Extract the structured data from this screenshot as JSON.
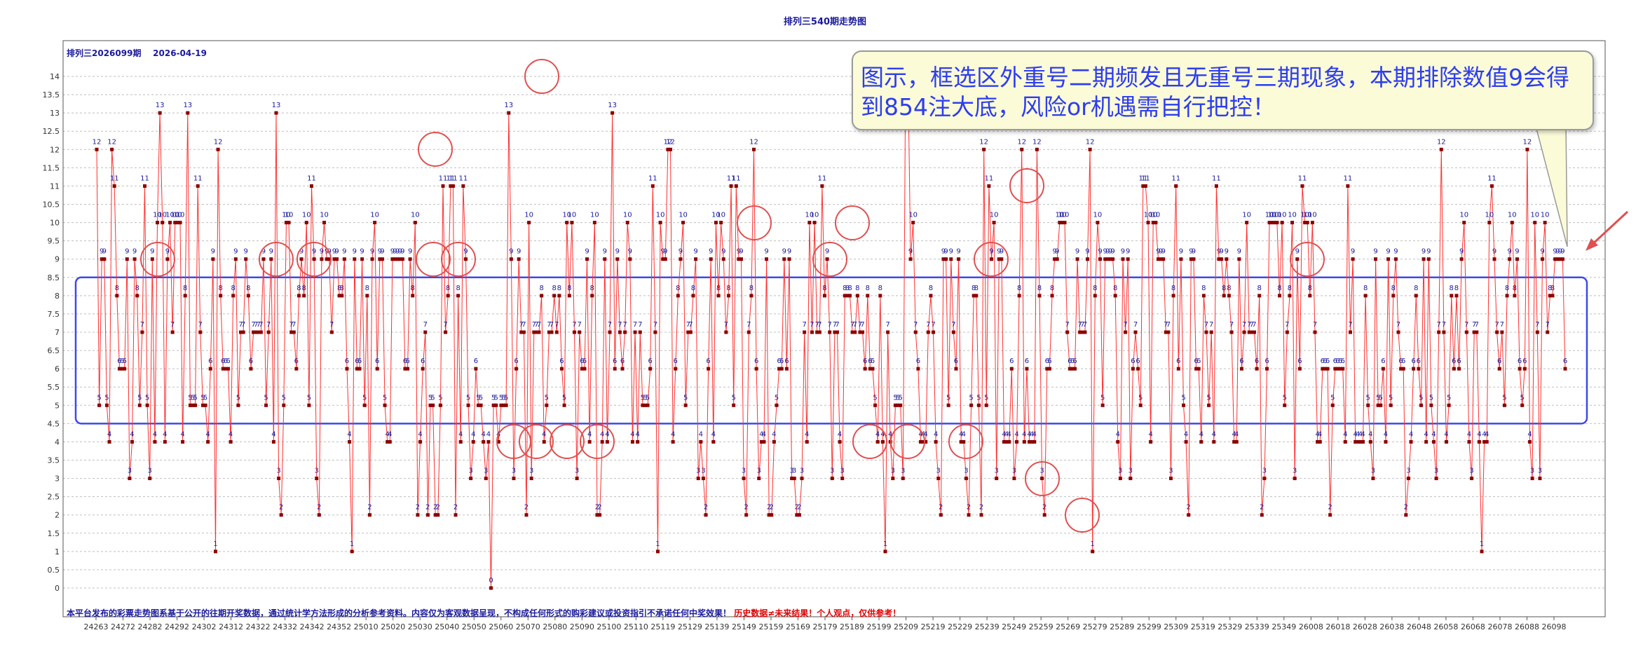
{
  "page": {
    "title": "排列三540期走势图",
    "subtitle": "排列三2026099期",
    "date": "2026-04-19",
    "callout": "图示，框选区外重号二期频发且无重号三期现象，本期排除数值9会得到854注大底，风险or机遇需自行把控！",
    "footer": {
      "main": "本平台发布的彩票走势图系基于公开的往期开奖数据，通过统计学方法形成的分析参考资料。内容仅为客观数据呈现，不构成任何形式的购彩建议或投资指引不承诺任何中奖效果！",
      "warning": "历史数据≠未来结果！个人观点，仅供参考！"
    },
    "colors": {
      "line": "#ff3030",
      "point": "#8b0000",
      "label": "#1a1a9c",
      "box": "#3d4ae8",
      "circle": "#e05050",
      "grid": "#bfbfbf"
    }
  },
  "chart_data": {
    "type": "line",
    "title": "排列三540期走势图",
    "subtitle": "排列三2026099期",
    "xlabel": "",
    "ylabel": "",
    "ylim": [
      0,
      14
    ],
    "ytick_step": 0.5,
    "grid": true,
    "x_tick_labels": [
      "24263",
      "24272",
      "24282",
      "24292",
      "24302",
      "24312",
      "24322",
      "24332",
      "24342",
      "24352",
      "25010",
      "25020",
      "25030",
      "25040",
      "25050",
      "25060",
      "25070",
      "25080",
      "25090",
      "25100",
      "25110",
      "25119",
      "25129",
      "25139",
      "25149",
      "25159",
      "25169",
      "25179",
      "25189",
      "25199",
      "25209",
      "25219",
      "25229",
      "25239",
      "25249",
      "25259",
      "25269",
      "25279",
      "25289",
      "25299",
      "25309",
      "25319",
      "25329",
      "25339",
      "25349",
      "26008",
      "26018",
      "26028",
      "26038",
      "26048",
      "26058",
      "26068",
      "26078",
      "26088",
      "26098"
    ],
    "values": [
      12,
      5,
      9,
      9,
      5,
      4,
      12,
      11,
      8,
      6,
      6,
      6,
      9,
      3,
      4,
      9,
      8,
      5,
      7,
      11,
      5,
      3,
      9,
      4,
      10,
      13,
      10,
      4,
      9,
      10,
      7,
      10,
      10,
      10,
      4,
      8,
      13,
      5,
      5,
      5,
      11,
      7,
      5,
      5,
      4,
      6,
      9,
      1,
      12,
      8,
      6,
      6,
      6,
      4,
      8,
      9,
      5,
      7,
      7,
      9,
      8,
      6,
      7,
      7,
      7,
      7,
      9,
      5,
      7,
      9,
      4,
      13,
      3,
      2,
      5,
      10,
      10,
      7,
      7,
      6,
      8,
      9,
      8,
      10,
      5,
      11,
      9,
      3,
      2,
      9,
      10,
      9,
      9,
      7,
      9,
      9,
      8,
      8,
      9,
      6,
      4,
      1,
      9,
      6,
      6,
      9,
      5,
      8,
      2,
      9,
      10,
      6,
      9,
      9,
      5,
      4,
      4,
      9,
      9,
      9,
      9,
      9,
      6,
      6,
      9,
      8,
      10,
      2,
      4,
      6,
      7,
      2,
      5,
      5,
      2,
      2,
      5,
      11,
      7,
      8,
      11,
      11,
      2,
      8,
      4,
      11,
      9,
      5,
      3,
      4,
      6,
      5,
      5,
      4,
      3,
      4,
      0,
      5,
      5,
      4,
      5,
      5,
      5,
      13,
      9,
      3,
      6,
      9,
      7,
      7,
      2,
      10,
      3,
      7,
      7,
      7,
      8,
      4,
      5,
      7,
      7,
      8,
      7,
      8,
      6,
      5,
      10,
      8,
      10,
      7,
      3,
      7,
      6,
      6,
      9,
      4,
      8,
      10,
      2,
      2,
      4,
      9,
      4,
      7,
      13,
      6,
      9,
      7,
      6,
      7,
      10,
      9,
      4,
      7,
      4,
      7,
      5,
      5,
      5,
      6,
      11,
      7,
      1,
      10,
      9,
      9,
      12,
      12,
      4,
      6,
      8,
      9,
      10,
      5,
      7,
      7,
      8,
      9,
      3,
      4,
      3,
      2,
      6,
      9,
      4,
      10,
      8,
      10,
      9,
      7,
      8,
      11,
      5,
      11,
      9,
      9,
      3,
      2,
      7,
      8,
      12,
      6,
      3,
      4,
      4,
      9,
      2,
      2,
      4,
      5,
      6,
      6,
      9,
      6,
      9,
      3,
      3,
      2,
      2,
      3,
      7,
      4,
      10,
      7,
      10,
      7,
      7,
      11,
      8,
      9,
      7,
      3,
      7,
      7,
      4,
      3,
      8,
      8,
      8,
      7,
      7,
      8,
      7,
      7,
      6,
      8,
      6,
      6,
      5,
      4,
      8,
      4,
      1,
      7,
      4,
      3,
      5,
      5,
      5,
      3,
      14,
      14,
      9,
      10,
      7,
      6,
      4,
      4,
      4,
      7,
      8,
      7,
      4,
      3,
      2,
      9,
      9,
      5,
      9,
      7,
      6,
      9,
      4,
      4,
      3,
      2,
      5,
      8,
      8,
      5,
      2,
      12,
      5,
      11,
      9,
      10,
      3,
      9,
      9,
      4,
      4,
      4,
      6,
      3,
      4,
      8,
      12,
      4,
      6,
      4,
      4,
      4,
      12,
      8,
      3,
      2,
      6,
      6,
      8,
      9,
      9,
      10,
      10,
      10,
      7,
      6,
      6,
      6,
      9,
      7,
      7,
      7,
      9,
      12,
      1,
      8,
      10,
      9,
      5,
      9,
      9,
      9,
      9,
      8,
      4,
      3,
      9,
      7,
      9,
      3,
      6,
      7,
      6,
      5,
      11,
      11,
      10,
      4,
      10,
      10,
      9,
      9,
      9,
      7,
      7,
      3,
      8,
      11,
      6,
      9,
      5,
      4,
      2,
      9,
      9,
      6,
      6,
      4,
      8,
      7,
      5,
      7,
      4,
      11,
      9,
      9,
      8,
      9,
      8,
      7,
      4,
      4,
      9,
      6,
      7,
      10,
      7,
      7,
      7,
      6,
      8,
      2,
      3,
      6,
      10,
      10,
      10,
      10,
      8,
      10,
      5,
      7,
      8,
      10,
      3,
      9,
      6,
      11,
      10,
      10,
      8,
      10,
      7,
      4,
      4,
      6,
      6,
      6,
      2,
      5,
      6,
      6,
      6,
      6,
      4,
      11,
      7,
      9,
      4,
      4,
      4,
      4,
      8,
      5,
      4,
      3,
      9,
      5,
      5,
      6,
      4,
      9,
      5,
      8,
      9,
      7,
      6,
      6,
      2,
      3,
      4,
      6,
      8,
      6,
      5,
      9,
      4,
      9,
      5,
      4,
      3,
      7,
      12,
      7,
      4,
      5,
      8,
      6,
      8,
      6,
      9,
      10,
      7,
      4,
      3,
      7,
      7,
      4,
      1,
      4,
      4,
      10,
      11,
      9,
      7,
      6,
      7,
      5,
      8,
      9,
      10,
      8,
      9,
      6,
      5,
      6,
      12,
      4,
      3,
      10,
      7,
      3,
      9,
      10,
      7,
      8,
      8,
      9,
      9,
      9,
      9,
      6
    ]
  }
}
